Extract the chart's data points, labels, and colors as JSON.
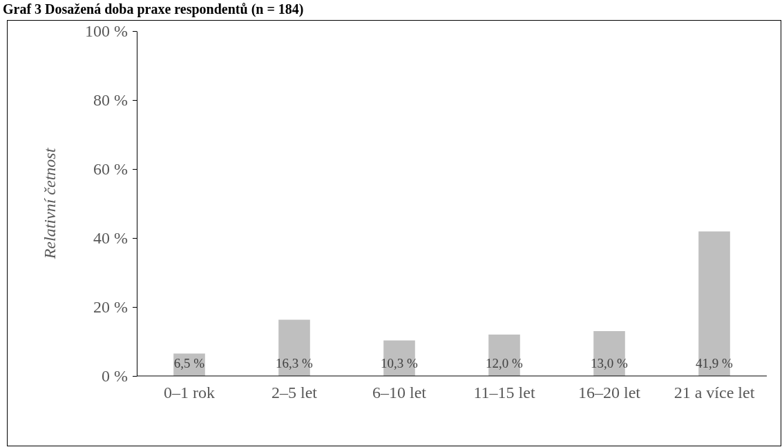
{
  "chart_data": {
    "type": "bar",
    "title": "Graf 3 Dosažená doba praxe respondentů (n = 184)",
    "ylabel": "Relativní četnost",
    "categories": [
      "0–1 rok",
      "2–5 let",
      "6–10 let",
      "11–15 let",
      "16–20 let",
      "21 a více let"
    ],
    "values": [
      6.5,
      16.3,
      10.3,
      12.0,
      13.0,
      41.9
    ],
    "value_labels": [
      "6,5 %",
      "16,3 %",
      "10,3 %",
      "12,0 %",
      "13,0 %",
      "41,9 %"
    ],
    "color": "#bfbfbf",
    "ylim": [
      0,
      100
    ],
    "yticks": [
      {
        "value": 0,
        "label": "0 %"
      },
      {
        "value": 20,
        "label": "20 %"
      },
      {
        "value": 40,
        "label": "40 %"
      },
      {
        "value": 60,
        "label": "60 %"
      },
      {
        "value": 80,
        "label": "80 %"
      },
      {
        "value": 100,
        "label": "100 %"
      }
    ],
    "grid": false
  }
}
